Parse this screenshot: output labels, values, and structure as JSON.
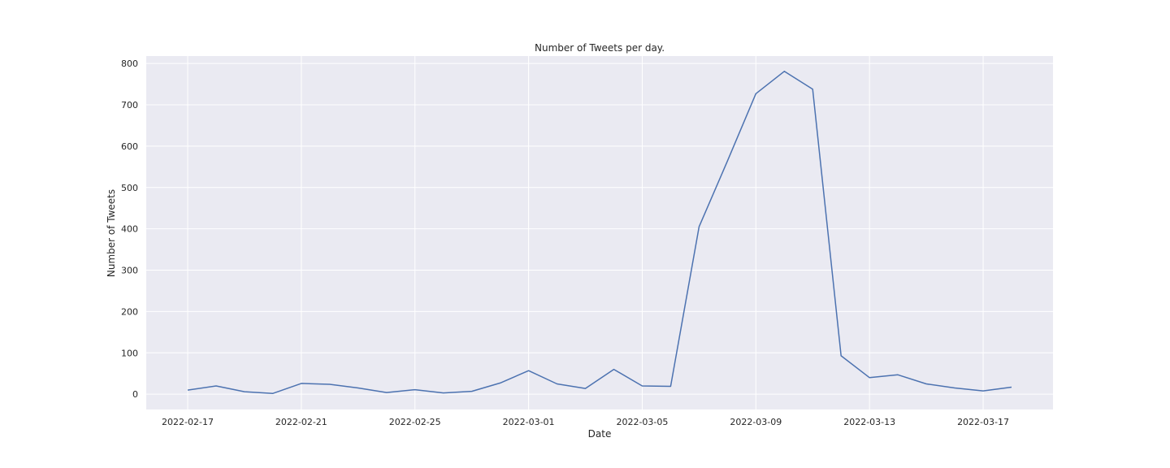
{
  "chart_data": {
    "type": "line",
    "title": "Number of Tweets per day.",
    "xlabel": "Date",
    "ylabel": "Number of Tweets",
    "x_range": [
      "2022-02-15T13:00:00",
      "2022-03-19T11:00:00"
    ],
    "ylim": [
      -37,
      818
    ],
    "x_ticks": [
      "2022-02-17",
      "2022-02-21",
      "2022-02-25",
      "2022-03-01",
      "2022-03-05",
      "2022-03-09",
      "2022-03-13",
      "2022-03-17"
    ],
    "y_ticks": [
      0,
      100,
      200,
      300,
      400,
      500,
      600,
      700,
      800
    ],
    "grid": true,
    "background": "#eaeaf2",
    "grid_color": "#ffffff",
    "line_color": "#4c72b0",
    "series": [
      {
        "x": [
          "2022-02-17",
          "2022-02-18",
          "2022-02-19",
          "2022-02-20",
          "2022-02-21",
          "2022-02-22",
          "2022-02-23",
          "2022-02-24",
          "2022-02-25",
          "2022-02-26",
          "2022-02-27",
          "2022-02-28",
          "2022-03-01",
          "2022-03-02",
          "2022-03-03",
          "2022-03-04",
          "2022-03-05",
          "2022-03-06",
          "2022-03-07",
          "2022-03-08",
          "2022-03-09",
          "2022-03-10",
          "2022-03-11",
          "2022-03-12",
          "2022-03-13",
          "2022-03-14",
          "2022-03-15",
          "2022-03-16",
          "2022-03-17",
          "2022-03-18"
        ],
        "values": [
          10,
          20,
          6,
          2,
          26,
          24,
          15,
          4,
          11,
          3,
          7,
          27,
          57,
          25,
          14,
          60,
          20,
          19,
          405,
          564,
          727,
          781,
          738,
          93,
          40,
          47,
          25,
          15,
          8,
          17
        ]
      }
    ]
  }
}
